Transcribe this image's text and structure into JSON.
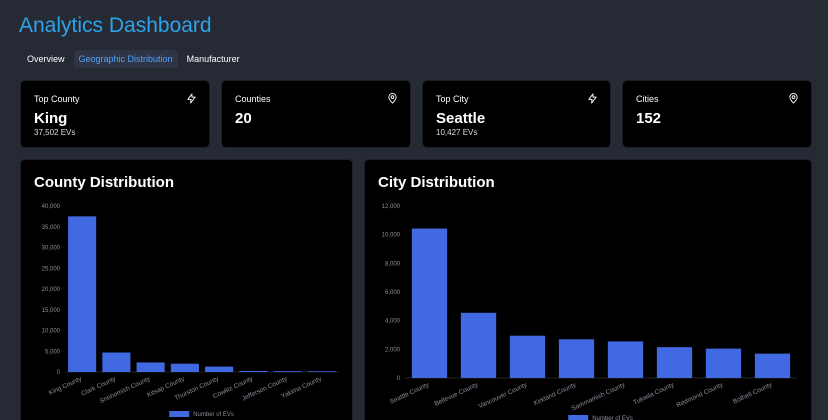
{
  "header": {
    "title": "Analytics Dashboard"
  },
  "tabs": [
    {
      "label": "Overview",
      "active": false
    },
    {
      "label": "Geographic Distribution",
      "active": true
    },
    {
      "label": "Manufacturer",
      "active": false
    }
  ],
  "stats": [
    {
      "label": "Top County",
      "value": "King",
      "sub": "37,502 EVs",
      "icon": "lightning-icon"
    },
    {
      "label": "Counties",
      "value": "20",
      "sub": "",
      "icon": "map-pin-icon"
    },
    {
      "label": "Top City",
      "value": "Seattle",
      "sub": "10,427 EVs",
      "icon": "lightning-icon"
    },
    {
      "label": "Cities",
      "value": "152",
      "sub": "",
      "icon": "map-pin-icon"
    }
  ],
  "colors": {
    "accent": "#2ea3e8",
    "bar": "#4169e1",
    "tab_active": "#4ea0ff"
  },
  "chart_data": [
    {
      "type": "bar",
      "title": "County Distribution",
      "categories": [
        "King County",
        "Clark County",
        "Snohomish County",
        "Kitsap County",
        "Thurston County",
        "Cowlitz County",
        "Jefferson County",
        "Yakima County"
      ],
      "series": [
        {
          "name": "Number of EVs",
          "values": [
            37502,
            4700,
            2300,
            2000,
            1300,
            250,
            200,
            180
          ]
        }
      ],
      "ylim": [
        0,
        40000
      ],
      "yticks": [
        "0",
        "5,000",
        "10,000",
        "15,000",
        "20,000",
        "25,000",
        "30,000",
        "35,000",
        "40,000"
      ],
      "xlabel": "",
      "ylabel": "",
      "legend": "bottom"
    },
    {
      "type": "bar",
      "title": "City Distribution",
      "categories": [
        "Seattle County",
        "Bellevue County",
        "Vancouver County",
        "Kirkland County",
        "Sammamish County",
        "Tukwila County",
        "Redmond County",
        "Bothell County"
      ],
      "series": [
        {
          "name": "Number of EVs",
          "values": [
            10427,
            4550,
            2950,
            2700,
            2550,
            2150,
            2050,
            1700
          ]
        }
      ],
      "ylim": [
        0,
        12000
      ],
      "yticks": [
        "0",
        "2,000",
        "4,000",
        "6,000",
        "8,000",
        "10,000",
        "12,000"
      ],
      "xlabel": "",
      "ylabel": "",
      "legend": "bottom"
    }
  ]
}
